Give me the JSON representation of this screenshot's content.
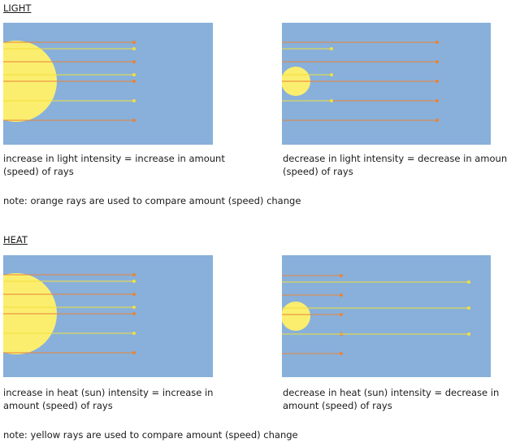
{
  "light": {
    "heading": "LIGHT",
    "left_caption_1": "increase in light intensity = increase in amount",
    "left_caption_2": "(speed) of rays",
    "right_caption_1": "decrease in light intensity = decrease in amount",
    "right_caption_2": "(speed) of rays",
    "note": "note: orange rays are used to compare amount (speed) change"
  },
  "heat": {
    "heading": "HEAT",
    "left_caption_1": "increase in heat (sun) intensity = increase in",
    "left_caption_2": "amount (speed) of rays",
    "right_caption_1": "decrease in heat (sun) intensity = decrease in",
    "right_caption_2": "amount (speed) of rays",
    "note": "note: yellow rays are used to compare amount (speed) change"
  },
  "colors": {
    "sky": "#88b0da",
    "sun": "#fbee6e",
    "orange_ray": "#e8833a",
    "yellow_ray": "#f2df3c"
  }
}
